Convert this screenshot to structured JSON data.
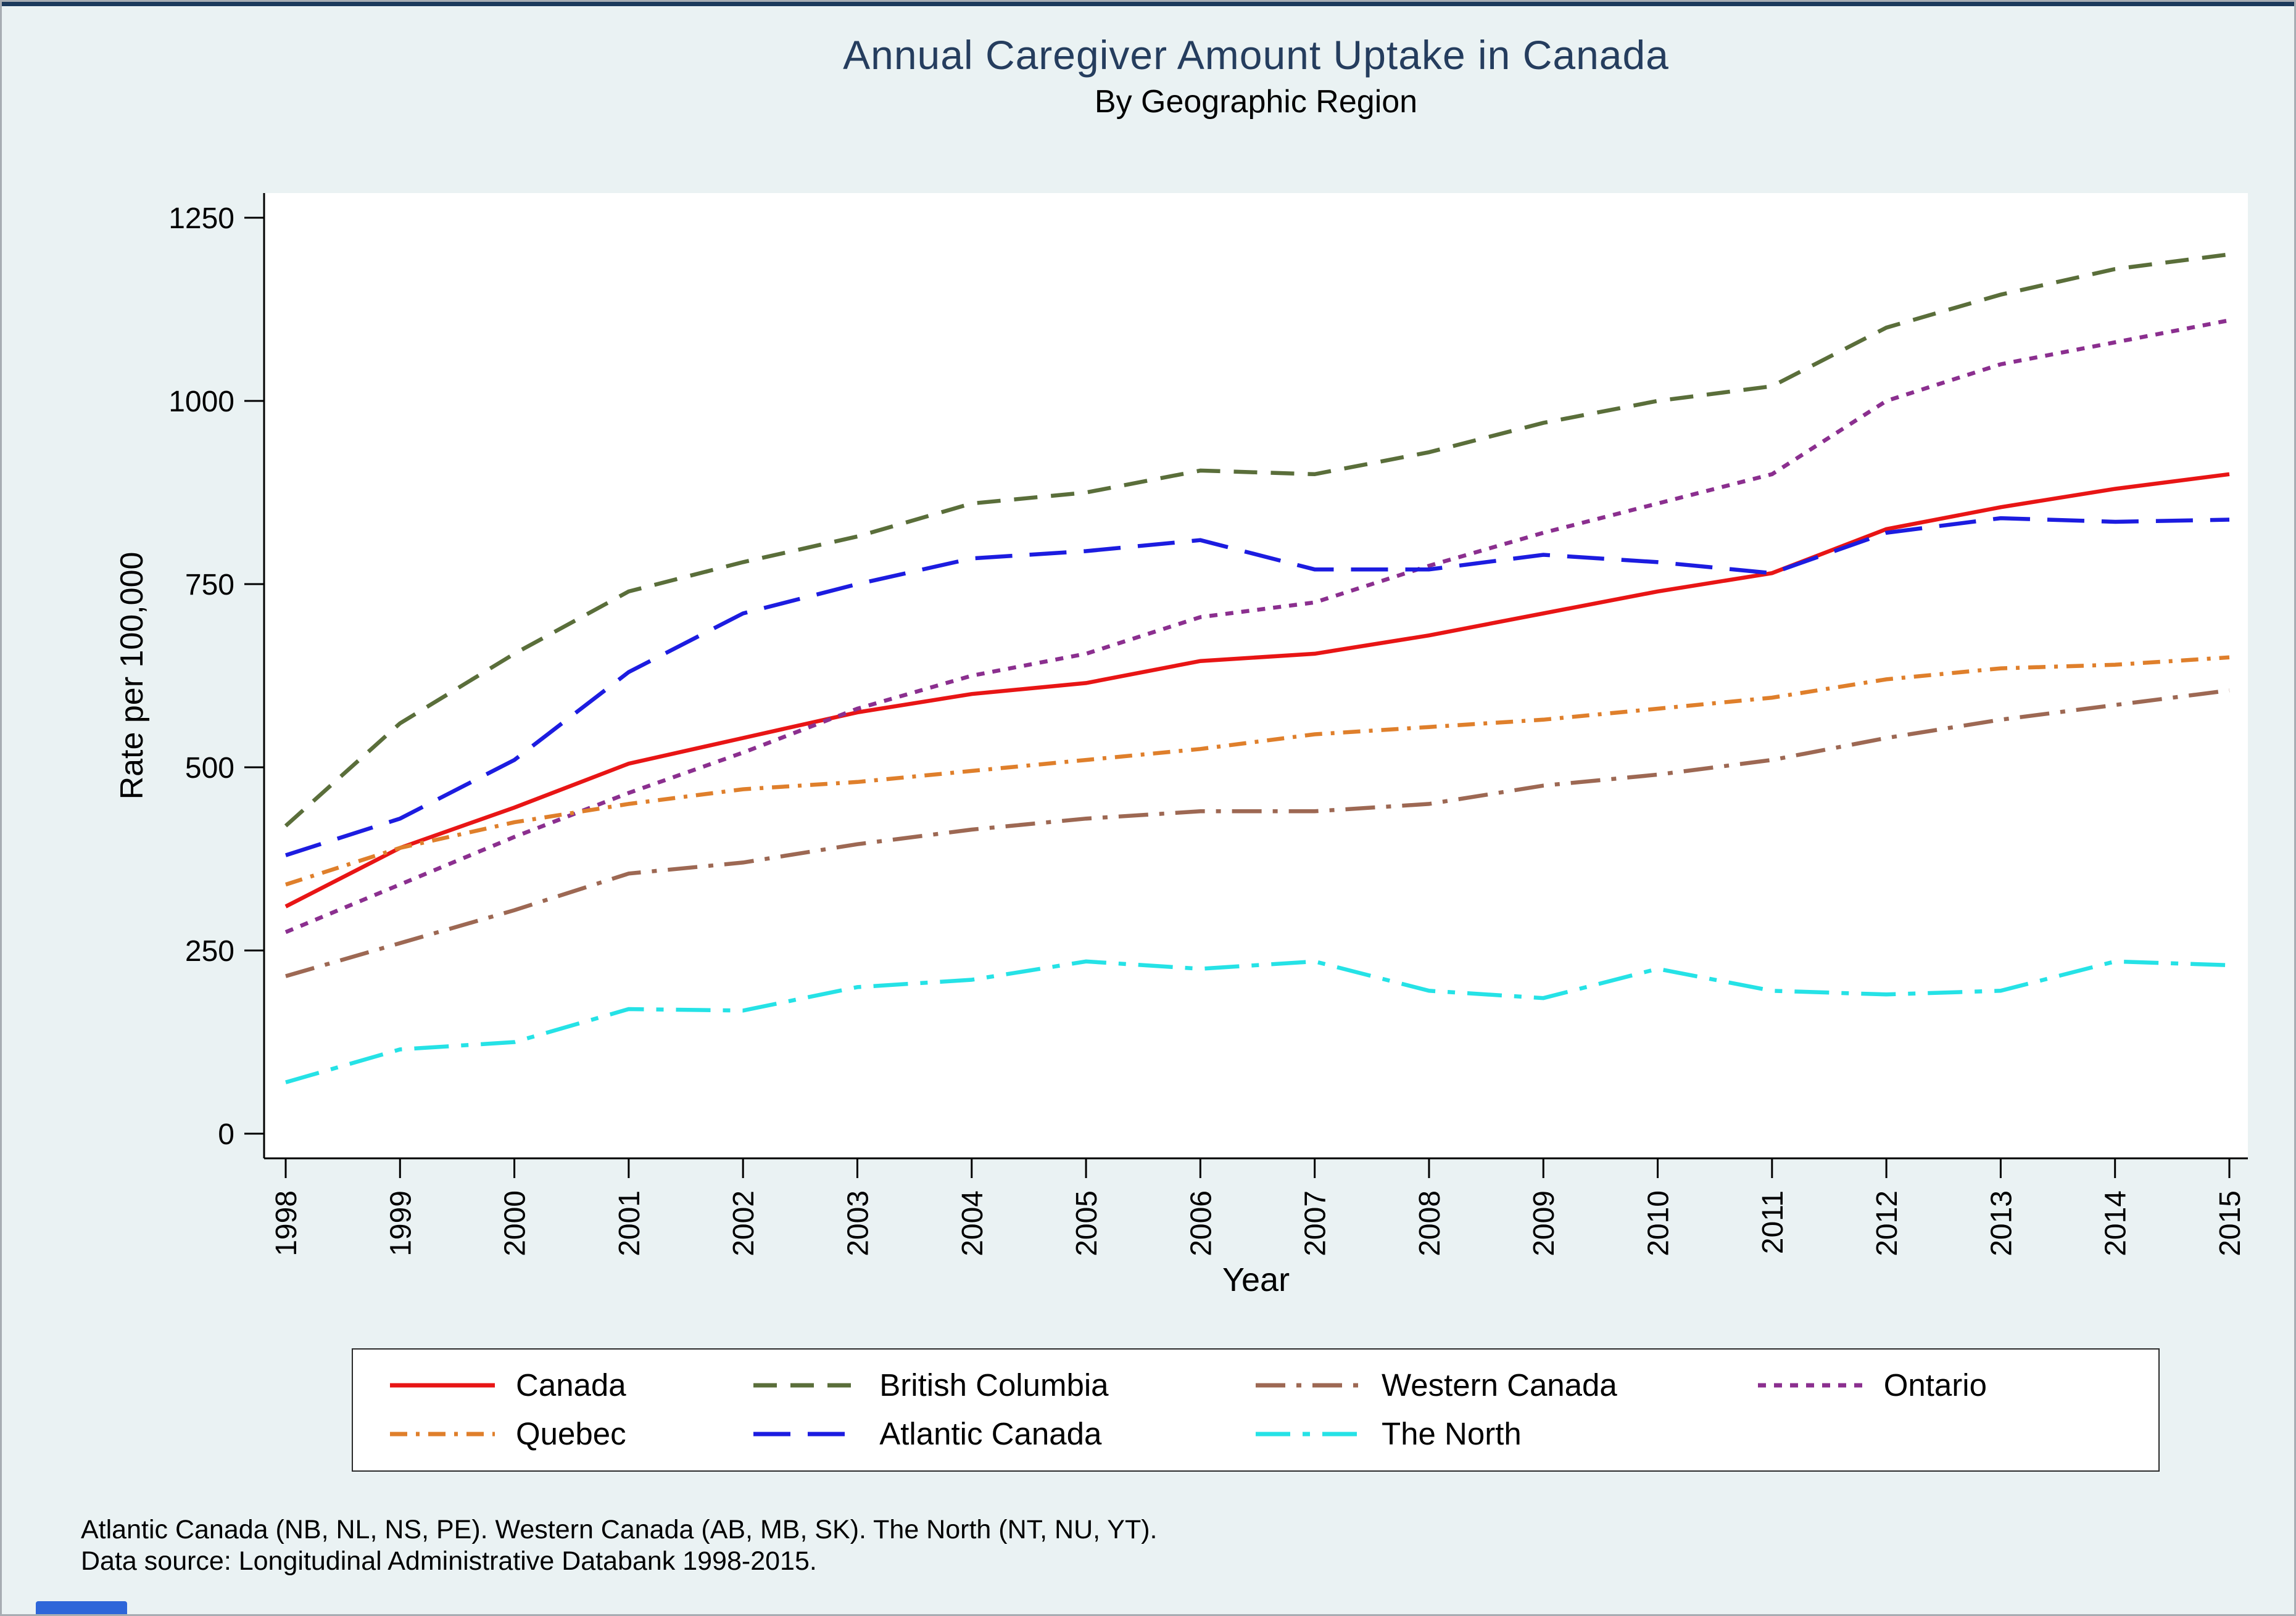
{
  "page": {
    "background": "#eaf2f3",
    "top_strip_color": "#1b3a5c",
    "bottom_fragment_color": "#2e66d9",
    "title_color": "#253d5e",
    "plot_background": "#ffffff",
    "axis_color": "#000000"
  },
  "chart_data": {
    "type": "line",
    "title": "Annual Caregiver Amount Uptake in Canada",
    "subtitle": "By Geographic Region",
    "xlabel": "Year",
    "ylabel": "Rate per 100,000",
    "x": [
      1998,
      1999,
      2000,
      2001,
      2002,
      2003,
      2004,
      2005,
      2006,
      2007,
      2008,
      2009,
      2010,
      2011,
      2012,
      2013,
      2014,
      2015
    ],
    "yticks": [
      0,
      250,
      500,
      750,
      1000,
      1250
    ],
    "ylim": [
      0,
      1250
    ],
    "grid": false,
    "legend_position": "bottom",
    "series": [
      {
        "name": "Canada",
        "color": "#e81515",
        "dash": "solid",
        "values": [
          310,
          390,
          445,
          505,
          540,
          575,
          600,
          615,
          645,
          655,
          680,
          710,
          740,
          765,
          825,
          855,
          880,
          900
        ]
      },
      {
        "name": "British Columbia",
        "color": "#5a6e3a",
        "dash": "38 22",
        "values": [
          420,
          560,
          655,
          740,
          780,
          815,
          860,
          875,
          905,
          900,
          930,
          970,
          1000,
          1020,
          1100,
          1145,
          1180,
          1200
        ]
      },
      {
        "name": "Western Canada",
        "color": "#9d6853",
        "dash": "48 18 8 18",
        "values": [
          215,
          260,
          305,
          355,
          370,
          395,
          415,
          430,
          440,
          440,
          450,
          475,
          490,
          510,
          540,
          565,
          585,
          605
        ]
      },
      {
        "name": "Ontario",
        "color": "#8b2f8f",
        "dash": "13 13",
        "values": [
          275,
          340,
          405,
          465,
          520,
          580,
          625,
          655,
          705,
          725,
          775,
          820,
          860,
          900,
          1000,
          1050,
          1080,
          1110
        ]
      },
      {
        "name": "Quebec",
        "color": "#df7f2b",
        "dash": "28 14 6 14",
        "values": [
          340,
          390,
          425,
          450,
          470,
          480,
          495,
          510,
          525,
          545,
          555,
          565,
          580,
          595,
          620,
          635,
          640,
          650
        ]
      },
      {
        "name": "Atlantic Canada",
        "color": "#1c1ce0",
        "dash": "60 28",
        "values": [
          380,
          430,
          510,
          630,
          710,
          750,
          785,
          795,
          810,
          770,
          770,
          790,
          780,
          765,
          820,
          840,
          835,
          838
        ]
      },
      {
        "name": "The North",
        "color": "#25e2e6",
        "dash": "56 20 12 20",
        "values": [
          70,
          115,
          125,
          170,
          168,
          200,
          210,
          235,
          225,
          235,
          195,
          185,
          225,
          195,
          190,
          195,
          235,
          230
        ]
      }
    ],
    "notes": [
      "Atlantic Canada (NB, NL, NS, PE). Western Canada (AB, MB, SK). The North (NT, NU, YT).",
      "Data source: Longitudinal Administrative Databank 1998-2015."
    ]
  }
}
